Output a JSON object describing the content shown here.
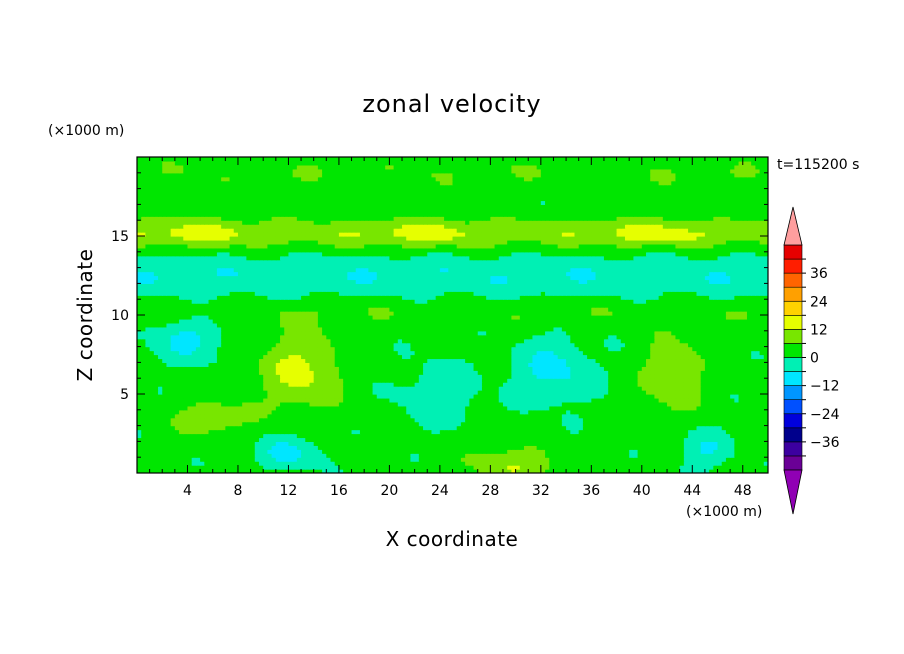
{
  "chart_data": {
    "type": "heatmap",
    "title": "zonal velocity",
    "xlabel": "X coordinate",
    "ylabel": "Z coordinate",
    "x_unit": "(×1000 m)",
    "y_unit": "(×1000 m)",
    "time_label": "t=115200 s",
    "xlim": [
      0,
      50
    ],
    "ylim": [
      0,
      20
    ],
    "x_ticks": [
      4,
      8,
      12,
      16,
      20,
      24,
      28,
      32,
      36,
      40,
      44,
      48
    ],
    "y_ticks": [
      5,
      10,
      15
    ],
    "colorbar": {
      "levels": [
        -42,
        -36,
        -30,
        -24,
        -18,
        -12,
        -6,
        0,
        6,
        12,
        18,
        24,
        30,
        36,
        42
      ],
      "labels": [
        36,
        24,
        12,
        0,
        -12,
        -24,
        -36
      ],
      "colors": [
        "#6a0096",
        "#3c00a0",
        "#00008c",
        "#0000dc",
        "#0050ff",
        "#0096ff",
        "#00e6ff",
        "#00f0b4",
        "#00e600",
        "#78e600",
        "#e6ff00",
        "#ffd200",
        "#ffa000",
        "#ff6400",
        "#ff1e00",
        "#e60000"
      ],
      "over_color": "#ff9e9e",
      "under_color": "#9000b4"
    },
    "field_pattern": [
      {
        "region": "near top (z 18-20)",
        "value_range": [
          0,
          6
        ]
      },
      {
        "region": "jet band (z 14-16.5)",
        "value_range": [
          6,
          18
        ]
      },
      {
        "region": "middle (z 11-14)",
        "value_range": [
          -6,
          0
        ]
      },
      {
        "region": "band (z 9.5-11)",
        "value_range": [
          0,
          6
        ]
      },
      {
        "region": "lower field (z 0-9.5)",
        "value_range": [
          -12,
          12
        ]
      },
      {
        "region": "positive blob x 10-18 z 3-9",
        "value_range": [
          6,
          18
        ]
      },
      {
        "region": "positive blob x 40-46 z 4-8.5",
        "value_range": [
          6,
          18
        ]
      }
    ]
  }
}
